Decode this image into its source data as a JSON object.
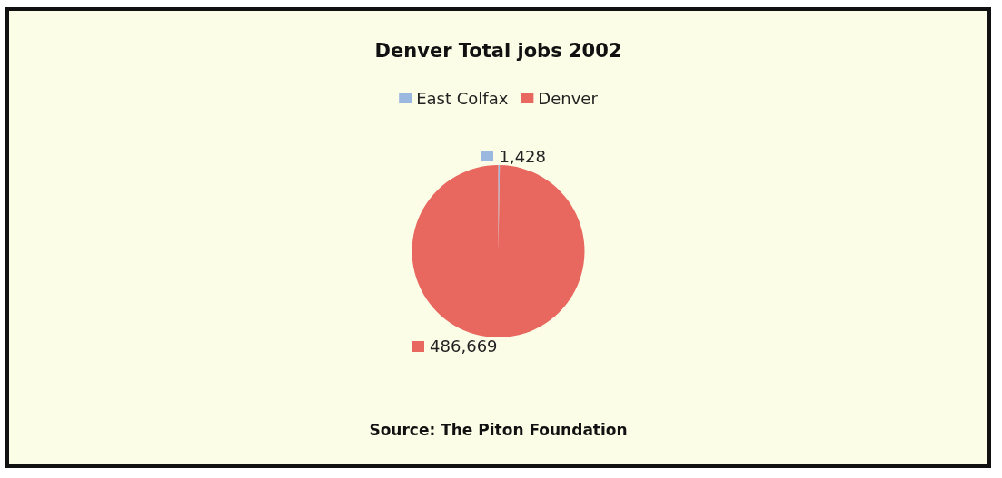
{
  "chart_data": {
    "type": "pie",
    "title": "Denver Total jobs 2002",
    "categories": [
      "East Colfax",
      "Denver"
    ],
    "values": [
      1428,
      486669
    ],
    "colors": [
      "#9ab8e0",
      "#e8675f"
    ],
    "value_labels": [
      "1,428",
      "486,669"
    ],
    "legend": "top",
    "annotations": [
      "Source: The Piton Foundation"
    ]
  }
}
